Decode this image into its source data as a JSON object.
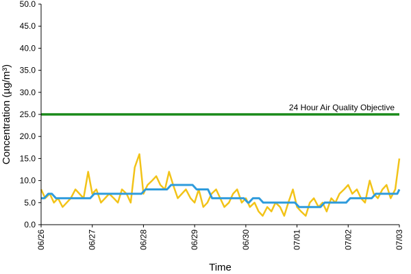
{
  "chart_data": {
    "type": "line",
    "title": "",
    "xlabel": "Time",
    "ylabel": "Concentration (µg/m³)",
    "ylim": [
      0,
      50
    ],
    "y_ticks": [
      "0.0",
      "5.0",
      "10.0",
      "15.0",
      "20.0",
      "25.0",
      "30.0",
      "35.0",
      "40.0",
      "45.0",
      "50.0"
    ],
    "x_ticks": [
      "06/26",
      "06/27",
      "06/28",
      "06/29",
      "06/30",
      "07/01",
      "07/02",
      "07/03"
    ],
    "grid": false,
    "legend": "none",
    "reference_line": {
      "label": "24 Hour Air Quality Objective",
      "value": 25,
      "color": "#1a8a1a"
    },
    "series": [
      {
        "color": "#f2c318",
        "style": "hourly",
        "x_days": [
          0,
          0.08,
          0.17,
          0.25,
          0.33,
          0.42,
          0.5,
          0.58,
          0.67,
          0.75,
          0.83,
          0.92,
          1.0,
          1.08,
          1.17,
          1.25,
          1.33,
          1.42,
          1.5,
          1.58,
          1.67,
          1.75,
          1.83,
          1.92,
          2.0,
          2.08,
          2.17,
          2.25,
          2.33,
          2.42,
          2.5,
          2.58,
          2.67,
          2.75,
          2.83,
          2.92,
          3.0,
          3.08,
          3.17,
          3.25,
          3.33,
          3.42,
          3.5,
          3.58,
          3.67,
          3.75,
          3.83,
          3.92,
          4.0,
          4.08,
          4.17,
          4.25,
          4.33,
          4.42,
          4.5,
          4.58,
          4.67,
          4.75,
          4.83,
          4.92,
          5.0,
          5.08,
          5.17,
          5.25,
          5.33,
          5.42,
          5.5,
          5.58,
          5.67,
          5.75,
          5.83,
          5.92,
          6.0,
          6.08,
          6.17,
          6.25,
          6.33,
          6.42,
          6.5,
          6.58,
          6.67,
          6.75,
          6.83,
          6.92,
          7.0
        ],
        "values": [
          8,
          6,
          7,
          5,
          6,
          4,
          5,
          6,
          8,
          7,
          6,
          12,
          7,
          8,
          5,
          6,
          7,
          6,
          5,
          8,
          7,
          5,
          13,
          16,
          7,
          9,
          10,
          11,
          9,
          8,
          12,
          9,
          6,
          7,
          8,
          6,
          5,
          8,
          4,
          5,
          7,
          8,
          6,
          4,
          5,
          7,
          8,
          5,
          6,
          4,
          5,
          3,
          2,
          4,
          3,
          5,
          4,
          2,
          5,
          8,
          4,
          3,
          2,
          5,
          6,
          4,
          5,
          3,
          6,
          5,
          7,
          8,
          9,
          7,
          8,
          6,
          5,
          10,
          7,
          6,
          8,
          9,
          6,
          8,
          15
        ],
        "values_note": ""
      },
      {
        "color": "#2e9bdc",
        "style": "rolling-24h",
        "x_days": [
          0,
          0.1,
          0.25,
          0.5,
          1.0,
          1.5,
          2.0,
          2.5,
          3.0,
          3.3,
          3.5,
          4.0,
          4.1,
          4.3,
          4.6,
          5.0,
          5.5,
          6.0,
          6.5,
          7.0
        ],
        "values": [
          6,
          7,
          6,
          6,
          7,
          7,
          8,
          9,
          8,
          6,
          6,
          5,
          6,
          5,
          5,
          4,
          5,
          6,
          7,
          8
        ]
      }
    ]
  }
}
